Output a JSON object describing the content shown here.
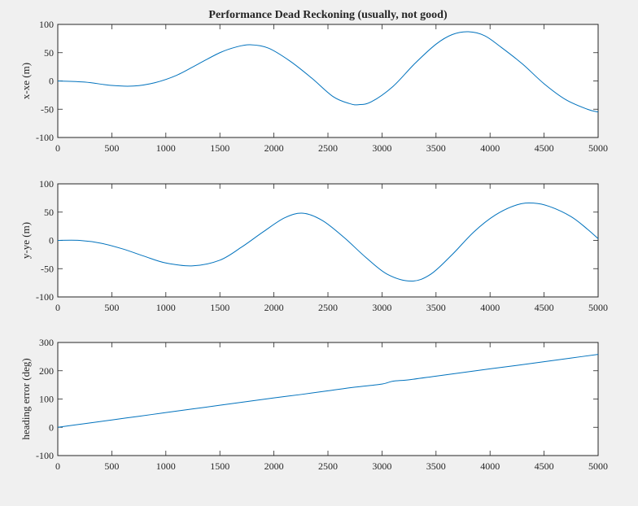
{
  "figure": {
    "background": "#f0f0f0"
  },
  "chart_data": [
    {
      "type": "line",
      "title": "Performance Dead Reckoning (usually, not good)",
      "xlabel": "",
      "ylabel": "x-xe (m)",
      "xlim": [
        0,
        5000
      ],
      "ylim": [
        -100,
        100
      ],
      "xticks": [
        0,
        500,
        1000,
        1500,
        2000,
        2500,
        3000,
        3500,
        4000,
        4500,
        5000
      ],
      "yticks": [
        -100,
        -50,
        0,
        50,
        100
      ],
      "grid": false,
      "color": "#0072bd",
      "series": [
        {
          "x": [
            0,
            250,
            500,
            700,
            900,
            1100,
            1300,
            1500,
            1650,
            1780,
            1950,
            2150,
            2350,
            2550,
            2700,
            2780,
            2900,
            3100,
            3300,
            3500,
            3650,
            3800,
            3950,
            4100,
            4300,
            4500,
            4700,
            4900,
            5000
          ],
          "y": [
            0,
            -2,
            -8,
            -9,
            -3,
            10,
            30,
            50,
            60,
            64,
            58,
            35,
            5,
            -28,
            -40,
            -42,
            -37,
            -10,
            30,
            65,
            82,
            87,
            80,
            60,
            30,
            -5,
            -33,
            -50,
            -55
          ]
        }
      ]
    },
    {
      "type": "line",
      "title": "",
      "xlabel": "",
      "ylabel": "y-ye (m)",
      "xlim": [
        0,
        5000
      ],
      "ylim": [
        -100,
        100
      ],
      "xticks": [
        0,
        500,
        1000,
        1500,
        2000,
        2500,
        3000,
        3500,
        4000,
        4500,
        5000
      ],
      "yticks": [
        -100,
        -50,
        0,
        50,
        100
      ],
      "grid": false,
      "color": "#0072bd",
      "series": [
        {
          "x": [
            0,
            200,
            400,
            600,
            800,
            1000,
            1250,
            1500,
            1700,
            1900,
            2100,
            2270,
            2450,
            2650,
            2850,
            3050,
            3270,
            3450,
            3650,
            3850,
            4050,
            4250,
            4400,
            4550,
            4750,
            4900,
            5000
          ],
          "y": [
            0,
            0,
            -5,
            -15,
            -28,
            -40,
            -45,
            -35,
            -12,
            15,
            40,
            48,
            35,
            5,
            -30,
            -60,
            -72,
            -60,
            -25,
            15,
            45,
            63,
            66,
            60,
            42,
            20,
            3
          ]
        }
      ]
    },
    {
      "type": "line",
      "title": "",
      "xlabel": "",
      "ylabel": "heading error (deg)",
      "xlim": [
        0,
        5000
      ],
      "ylim": [
        -100,
        300
      ],
      "xticks": [
        0,
        500,
        1000,
        1500,
        2000,
        2500,
        3000,
        3500,
        4000,
        4500,
        5000
      ],
      "yticks": [
        -100,
        0,
        100,
        200,
        300
      ],
      "grid": false,
      "color": "#0072bd",
      "series": [
        {
          "x": [
            0,
            250,
            500,
            750,
            1000,
            1250,
            1500,
            1750,
            2000,
            2250,
            2500,
            2750,
            3000,
            3100,
            3250,
            3500,
            3750,
            4000,
            4250,
            4500,
            4750,
            5000
          ],
          "y": [
            0,
            13,
            26,
            39,
            52,
            65,
            78,
            91,
            104,
            116,
            129,
            142,
            153,
            163,
            168,
            181,
            194,
            207,
            219,
            232,
            245,
            258
          ]
        }
      ]
    }
  ]
}
